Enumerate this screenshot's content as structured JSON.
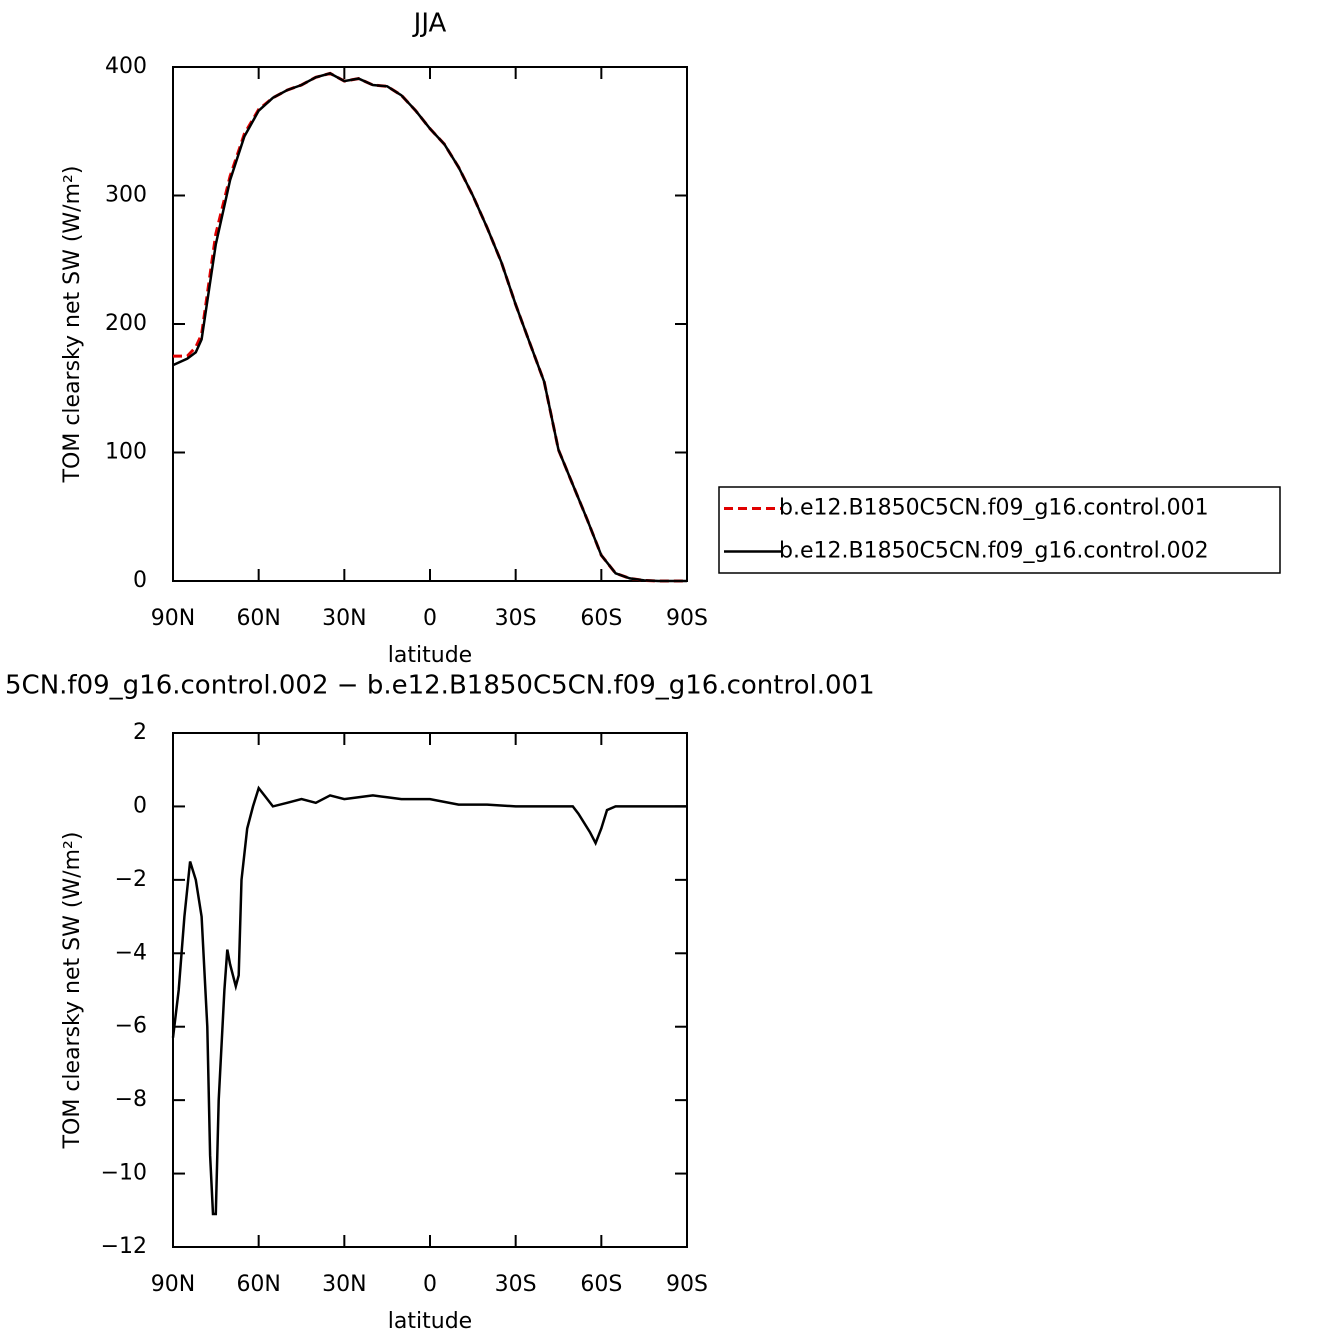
{
  "chart_data": [
    {
      "type": "line",
      "title": "JJA",
      "xlabel": "latitude",
      "ylabel": "TOM clearsky net SW (W/m²)",
      "x": [
        90,
        85,
        82,
        80,
        75,
        70,
        65,
        60,
        55,
        50,
        45,
        40,
        35,
        30,
        25,
        20,
        15,
        10,
        5,
        0,
        -5,
        -10,
        -15,
        -20,
        -25,
        -30,
        -35,
        -40,
        -45,
        -50,
        -55,
        -60,
        -65,
        -70,
        -75,
        -80,
        -85,
        -90
      ],
      "series": [
        {
          "name": "b.e12.B1850C5CN.f09_g16.control.001",
          "color": "#e00000",
          "dash": true,
          "values": [
            175,
            175,
            182,
            192,
            270,
            315,
            348,
            367,
            376,
            382,
            386,
            392,
            395,
            389,
            391,
            386,
            385,
            378,
            366,
            352,
            340,
            322,
            300,
            275,
            248,
            215,
            185,
            155,
            102,
            75,
            48,
            20,
            6,
            2,
            0.5,
            0,
            0,
            0
          ]
        },
        {
          "name": "b.e12.B1850C5CN.f09_g16.control.002",
          "color": "#000000",
          "dash": false,
          "values": [
            168,
            173,
            178,
            188,
            262,
            312,
            346,
            366,
            376,
            382,
            386,
            392,
            395,
            389,
            391,
            386,
            385,
            378,
            366,
            352,
            340,
            322,
            300,
            275,
            248,
            215,
            185,
            155,
            102,
            75,
            48,
            20,
            6,
            2,
            0.5,
            0,
            0,
            0
          ]
        }
      ],
      "xlim": [
        90,
        -90
      ],
      "xticks": [
        {
          "value": 90,
          "label": "90N"
        },
        {
          "value": 60,
          "label": "60N"
        },
        {
          "value": 30,
          "label": "30N"
        },
        0,
        {
          "value": -30,
          "label": "30S"
        },
        {
          "value": -60,
          "label": "60S"
        },
        {
          "value": -90,
          "label": "90S"
        }
      ],
      "ylim": [
        0,
        400
      ],
      "yticks": [
        0,
        100,
        200,
        300,
        400
      ],
      "legend": "right"
    },
    {
      "type": "line",
      "title": "5CN.f09_g16.control.002 − b.e12.B1850C5CN.f09_g16.control.001",
      "xlabel": "latitude",
      "ylabel": "TOM clearsky net SW (W/m²)",
      "x": [
        90,
        88,
        86,
        84,
        82,
        80,
        78,
        77,
        76,
        75,
        74,
        72,
        71,
        70,
        68,
        67,
        66,
        64,
        62,
        60,
        58,
        55,
        50,
        45,
        40,
        35,
        30,
        25,
        20,
        15,
        10,
        5,
        0,
        -10,
        -20,
        -30,
        -40,
        -50,
        -52,
        -56,
        -58,
        -60,
        -62,
        -65,
        -70,
        -80,
        -90
      ],
      "series": [
        {
          "color": "#000000",
          "dash": false,
          "values": [
            -6.3,
            -5,
            -3,
            -1.5,
            -2,
            -3,
            -6,
            -9.5,
            -11.1,
            -11.1,
            -8,
            -5,
            -3.9,
            -4.3,
            -4.9,
            -4.6,
            -2,
            -0.6,
            0,
            0.5,
            0.3,
            0,
            0.1,
            0.2,
            0.1,
            0.3,
            0.2,
            0.25,
            0.3,
            0.25,
            0.2,
            0.2,
            0.2,
            0.05,
            0.05,
            0,
            0,
            0,
            -0.2,
            -0.7,
            -1,
            -0.6,
            -0.1,
            0,
            0,
            0,
            0
          ]
        }
      ],
      "xlim": [
        90,
        -90
      ],
      "xticks": [
        {
          "value": 90,
          "label": "90N"
        },
        {
          "value": 60,
          "label": "60N"
        },
        {
          "value": 30,
          "label": "30N"
        },
        0,
        {
          "value": -30,
          "label": "30S"
        },
        {
          "value": -60,
          "label": "60S"
        },
        {
          "value": -90,
          "label": "90S"
        }
      ],
      "ylim": [
        -12,
        2
      ],
      "yticks": [
        {
          "value": -12,
          "label": "−12"
        },
        {
          "value": -10,
          "label": "−10"
        },
        {
          "value": -8,
          "label": "−8"
        },
        {
          "value": -6,
          "label": "−6"
        },
        {
          "value": -4,
          "label": "−4"
        },
        {
          "value": -2,
          "label": "−2"
        },
        0,
        2
      ]
    }
  ]
}
